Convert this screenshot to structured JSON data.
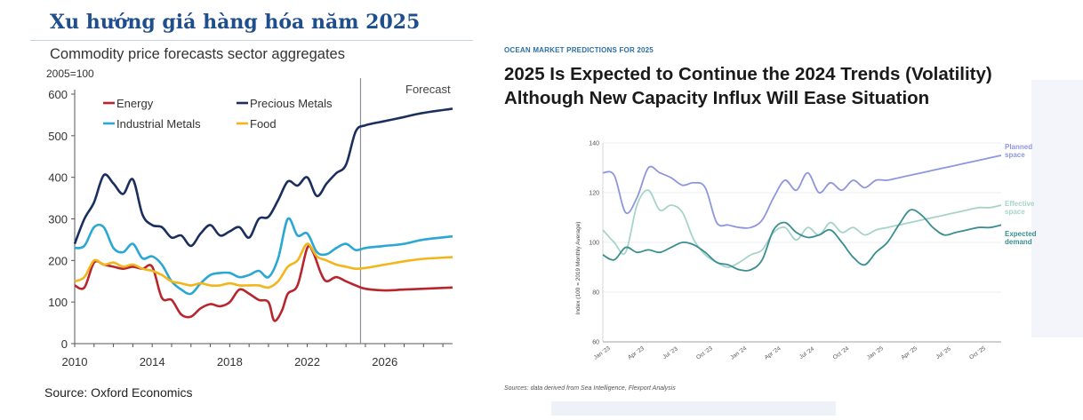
{
  "page": {
    "title": "Xu hướng giá hàng hóa năm 2025"
  },
  "chart_data": [
    {
      "type": "line",
      "title": "Commodity price forecasts sector aggregates",
      "ylabel": "2005=100",
      "xlabel": "",
      "ylim": [
        0,
        600
      ],
      "xlim": [
        2010,
        2029.5
      ],
      "yticks": [
        0,
        100,
        200,
        300,
        400,
        500,
        600
      ],
      "xticks": [
        2010,
        2014,
        2018,
        2022,
        2026
      ],
      "grid": false,
      "legend": "top-left",
      "forecast_start": 2024.75,
      "annotation": "Forecast",
      "source": "Source: Oxford Economics",
      "series": [
        {
          "name": "Energy",
          "color": "#b8252d",
          "x": [
            2010,
            2010.5,
            2011,
            2011.5,
            2012,
            2012.5,
            2013,
            2013.5,
            2014,
            2014.5,
            2015,
            2015.5,
            2016,
            2016.5,
            2017,
            2017.5,
            2018,
            2018.5,
            2019,
            2019.5,
            2020,
            2020.3,
            2020.7,
            2021,
            2021.5,
            2022,
            2022.3,
            2022.7,
            2023,
            2023.5,
            2024,
            2024.5,
            2025,
            2026,
            2027,
            2028,
            2029.5
          ],
          "values": [
            140,
            135,
            195,
            190,
            185,
            180,
            185,
            180,
            185,
            110,
            105,
            70,
            65,
            85,
            95,
            90,
            100,
            130,
            120,
            105,
            100,
            55,
            80,
            120,
            140,
            230,
            220,
            170,
            150,
            160,
            150,
            140,
            132,
            128,
            130,
            132,
            135
          ]
        },
        {
          "name": "Precious Metals",
          "color": "#1b2f5e",
          "x": [
            2010,
            2010.5,
            2011,
            2011.5,
            2012,
            2012.5,
            2013,
            2013.5,
            2014,
            2014.5,
            2015,
            2015.5,
            2016,
            2016.5,
            2017,
            2017.5,
            2018,
            2018.5,
            2019,
            2019.5,
            2020,
            2020.5,
            2021,
            2021.5,
            2022,
            2022.5,
            2023,
            2023.5,
            2024,
            2024.5,
            2025,
            2026,
            2027,
            2028,
            2029.5
          ],
          "values": [
            240,
            300,
            340,
            405,
            385,
            360,
            395,
            310,
            285,
            280,
            255,
            260,
            235,
            265,
            285,
            260,
            270,
            280,
            255,
            300,
            305,
            345,
            390,
            380,
            400,
            355,
            385,
            410,
            430,
            510,
            525,
            535,
            545,
            555,
            565
          ]
        },
        {
          "name": "Industrial Metals",
          "color": "#2aa7d3",
          "x": [
            2010,
            2010.5,
            2011,
            2011.5,
            2012,
            2012.5,
            2013,
            2013.5,
            2014,
            2014.5,
            2015,
            2015.5,
            2016,
            2016.5,
            2017,
            2017.5,
            2018,
            2018.5,
            2019,
            2019.5,
            2020,
            2020.5,
            2021,
            2021.5,
            2022,
            2022.5,
            2023,
            2023.5,
            2024,
            2024.5,
            2025,
            2026,
            2027,
            2028,
            2029.5
          ],
          "values": [
            230,
            235,
            280,
            280,
            230,
            220,
            240,
            205,
            210,
            190,
            150,
            130,
            120,
            145,
            165,
            170,
            170,
            160,
            165,
            175,
            160,
            205,
            300,
            260,
            265,
            220,
            215,
            230,
            240,
            225,
            230,
            235,
            240,
            250,
            258
          ]
        },
        {
          "name": "Food",
          "color": "#f2b51a",
          "x": [
            2010,
            2010.5,
            2011,
            2011.5,
            2012,
            2012.5,
            2013,
            2013.5,
            2014,
            2014.5,
            2015,
            2015.5,
            2016,
            2016.5,
            2017,
            2017.5,
            2018,
            2018.5,
            2019,
            2019.5,
            2020,
            2020.5,
            2021,
            2021.5,
            2022,
            2022.5,
            2023,
            2023.5,
            2024,
            2024.5,
            2025,
            2026,
            2027,
            2028,
            2029.5
          ],
          "values": [
            150,
            160,
            200,
            190,
            195,
            185,
            190,
            180,
            175,
            165,
            150,
            145,
            140,
            145,
            140,
            140,
            145,
            140,
            140,
            140,
            135,
            150,
            185,
            200,
            240,
            210,
            200,
            190,
            185,
            180,
            182,
            190,
            198,
            204,
            208
          ]
        }
      ]
    },
    {
      "type": "line",
      "kicker": "OCEAN MARKET PREDICTIONS FOR 2025",
      "title": "2025 Is Expected to Continue the 2024 Trends (Volatility) Although New Capacity Influx Will Ease Situation",
      "ylabel": "Index (100 = 2019 Monthly Average)",
      "xlabel": "",
      "ylim": [
        60,
        140
      ],
      "yticks": [
        60,
        80,
        100,
        120,
        140
      ],
      "categories": [
        "Jan '23",
        "Apr '23",
        "Jul '23",
        "Oct '23",
        "Jan '24",
        "Apr '24",
        "Jul '24",
        "Oct '24",
        "Jan '25",
        "Apr '25",
        "Jul '25",
        "Oct '25"
      ],
      "x_range": [
        0,
        35
      ],
      "grid": false,
      "legend": "right",
      "source": "Sources: data derived from Sea Intelligence, Flexport Analysis",
      "series": [
        {
          "name": "Planned space",
          "color": "#8e96e0",
          "x": [
            0,
            1,
            2,
            3,
            4,
            5,
            6,
            7,
            8,
            9,
            10,
            11,
            12,
            13,
            14,
            15,
            16,
            17,
            18,
            19,
            20,
            21,
            22,
            23,
            24,
            25,
            26,
            27,
            28,
            29,
            30,
            31,
            32,
            33,
            34,
            35
          ],
          "values": [
            128,
            127,
            112,
            118,
            130,
            128,
            126,
            123,
            124,
            122,
            108,
            107,
            106,
            106,
            109,
            118,
            125,
            121,
            128,
            120,
            124,
            121,
            125,
            122,
            125,
            125,
            126,
            127,
            128,
            129,
            130,
            131,
            132,
            133,
            134,
            135
          ]
        },
        {
          "name": "Effective space",
          "color": "#a6d4c8",
          "x": [
            0,
            1,
            2,
            3,
            4,
            5,
            6,
            7,
            8,
            9,
            10,
            11,
            12,
            13,
            14,
            15,
            16,
            17,
            18,
            19,
            20,
            21,
            22,
            23,
            24,
            25,
            26,
            27,
            28,
            29,
            30,
            31,
            32,
            33,
            34,
            35
          ],
          "values": [
            105,
            100,
            96,
            115,
            121,
            113,
            115,
            112,
            101,
            95,
            92,
            90,
            92,
            95,
            97,
            104,
            106,
            101,
            106,
            103,
            108,
            104,
            106,
            103,
            105,
            106,
            107,
            108,
            109,
            110,
            111,
            112,
            113,
            114,
            114,
            115
          ]
        },
        {
          "name": "Expected demand",
          "color": "#3a8e90",
          "x": [
            0,
            1,
            2,
            3,
            4,
            5,
            6,
            7,
            8,
            9,
            10,
            11,
            12,
            13,
            14,
            15,
            16,
            17,
            18,
            19,
            20,
            21,
            22,
            23,
            24,
            25,
            26,
            27,
            28,
            29,
            30,
            31,
            32,
            33,
            34,
            35
          ],
          "values": [
            95,
            93,
            98,
            96,
            97,
            96,
            98,
            100,
            99,
            96,
            92,
            91,
            89,
            89,
            93,
            105,
            108,
            104,
            102,
            103,
            105,
            100,
            94,
            91,
            96,
            100,
            107,
            113,
            111,
            106,
            103,
            104,
            105,
            106,
            106,
            107
          ]
        }
      ]
    }
  ]
}
